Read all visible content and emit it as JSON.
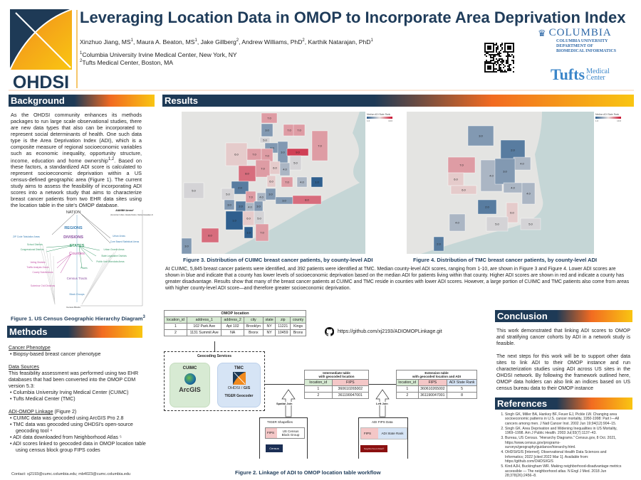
{
  "header": {
    "logo_text": "OHDSI",
    "title": "Leveraging Location Data in OMOP to Incorporate Area Deprivation Index",
    "authors": [
      {
        "name": "Xinzhuo Jiang, MS",
        "aff": "1"
      },
      {
        "name": "Maura A. Beaton, MS",
        "aff": "1"
      },
      {
        "name": "Jake Gillberg",
        "aff": "2"
      },
      {
        "name": "Andrew Williams, PhD",
        "aff": "2"
      },
      {
        "name": "Karthik Natarajan, PhD",
        "aff": "1"
      }
    ],
    "affiliations": [
      {
        "num": "1",
        "text": "Columbia University Irvine Medical Center, New York, NY"
      },
      {
        "num": "2",
        "text": "Tufts Medical Center, Boston, MA"
      }
    ],
    "columbia_logo": "COLUMBIA",
    "columbia_dept": [
      "Columbia University",
      "Department of",
      "Biomedical Informatics"
    ],
    "tufts_logo": "Tufts",
    "tufts_sub": [
      "Medical",
      "Center"
    ]
  },
  "background": {
    "heading": "Background",
    "text": "As the OHDSI community enhances its methods packages to run large scale observational studies, there are new data types that also can be incorporated to represent social determinants of health. One such data type is the Area Deprivation Index (ADI), which is a composite measure of regional socioeconomic variables such as economic inequality, opportunity structure, income, education and home ownership",
    "text_sup": "1,2",
    "text2": ". Based on these factors, a standardized ADI score is calculated to represent socioeconomic deprivation within a US census-defined geographic area (Figure 1). The current study aims to assess the feasibility of incorporating ADI scores into a network study that aims to characterize breast cancer patients from two EHR data sites using the location table in the site's OMOP database.",
    "figure1": {
      "nation": "NATION",
      "regions": "REGIONS",
      "divisions": "DIVISIONS",
      "states": "STATES",
      "counties": "Counties",
      "tracts": "Census Tracts",
      "block_groups": "Block Groups",
      "blocks": "Census Blocks",
      "aiannh": "AIANNH Areas*",
      "aiannh_note": "(American Indian, Alaska Native, Native Hawaiian Areas)",
      "left": [
        "ZIP Code Tabulation Areas",
        "School Districts",
        "Congressional Districts"
      ],
      "county_subs": [
        "Voting Districts",
        "Traffic Analysis Zones",
        "County Subdivisions",
        "Subminor Civil Divisions"
      ],
      "right": [
        "Urban Areas",
        "Core Based Statistical Areas",
        "Urban Growth Areas",
        "State Legislative Districts",
        "Public Use Microdata Areas",
        "Places"
      ],
      "caption": "Figure 1. US Census Geographic Hierarchy Diagram",
      "caption_sup": "3"
    }
  },
  "methods": {
    "heading": "Methods",
    "phenotype_title": "Cancer Phenotype",
    "phenotype_items": [
      "Biopsy-based breast cancer phenotype"
    ],
    "sources_title": "Data Sources",
    "sources_text": "This feasibility assessment was performed using two EHR databases that had been converted into the OMOP CDM version 5.3:",
    "sources_items": [
      "Columbia University Irving Medical Center (CUIMC)",
      "Tufts Medical Center (TMC)"
    ],
    "linkage_title": "ADI-OMOP Linkage",
    "linkage_ref": " (Figure 2)",
    "linkage_items": [
      "CUIMC data was geocoded using ArcGIS Pro 2.8",
      "TMC data was geocoded using OHDSI's open-source geocoding tool ⁴",
      "ADI data downloaded from Neighborhood Atlas ⁵",
      "ADI scores linked to geocoded data in OMOP location table using census block group FIPS codes"
    ],
    "contact": "Contact: xj2193@cumc.columbia.edu; mb4023@cumc.columbia.edu"
  },
  "results": {
    "heading": "Results",
    "legend_title": "Median ADI State Rank",
    "legend_min": "1.0",
    "legend_max": "10.0",
    "colors": {
      "low": "#2f5f8e",
      "mid": "#e9e2df",
      "high": "#c8102e"
    },
    "fig3_values": [
      7,
      3,
      5,
      7,
      7,
      7,
      3,
      6,
      7,
      7,
      3,
      9,
      8,
      7,
      6,
      4,
      5,
      5,
      6,
      7,
      2,
      4,
      1,
      7,
      5,
      4,
      3,
      3,
      8,
      3,
      2,
      4,
      3,
      1,
      6,
      5,
      8,
      1,
      7,
      3
    ],
    "fig3_caption": "Figure 3. Distribution of CUIMC breast cancer patients, by county-level ADI",
    "fig4_values": [
      3,
      2,
      4,
      7,
      6,
      6,
      4,
      3,
      4,
      4,
      2,
      6,
      5,
      5,
      4,
      2
    ],
    "fig4_caption": "Figure 4. Distribution of TMC breast cancer patients, by county-level ADI",
    "text": "At CUIMC, 5,845 breast cancer patients were identified, and 392 patients were identified at TMC. Median county-level ADI scores, ranging from 1-10, are shown in Figure 3 and Figure 4. Lower ADI scores are shown in blue and indicate that a county has lower levels of socioeconomic deprivation based on the median ADI for patients living within that county. Higher ADI scores are shown in red and indicate a county has greater disadvantage.  Results show that many of the breast cancer patients at CUIMC and TMC reside in counties with lower ADI scores. However, a large portion of CUIMC and TMC patients also come from areas with higher county-level ADI score—and therefore greater socioeconomic deprivation.",
    "github": "https://github.com/xj2193/ADIOMOPLinkage.git"
  },
  "figure2": {
    "omop_title": "OMOP location",
    "omop_cols": [
      "location_id",
      "address_1",
      "address_2",
      "city",
      "state",
      "zip",
      "county"
    ],
    "omop_rows": [
      [
        "1",
        "102 Park Ave",
        "Apt 102",
        "Brooklyn",
        "NY",
        "11221",
        "Kings"
      ],
      [
        "2",
        "1131 Summit Ave",
        "NA",
        "Bronx",
        "NY",
        "10459",
        "Bronx"
      ]
    ],
    "geocoding_title": "Geocoding Services",
    "cuimc": "CUIMC",
    "arcgis": "ArcGIS",
    "tmc": "TMC",
    "ohdsi_gis": "OHDSI / ",
    "gis": "GIS",
    "tiger_geocoder": "TIGER Geocoder",
    "inter_title": [
      "Intermediate table",
      "with geocoded location"
    ],
    "inter_cols": [
      "location_id",
      "FIPS"
    ],
    "inter_rows": [
      [
        "1",
        "360610265002"
      ],
      [
        "2",
        "361190047001"
      ]
    ],
    "ext_title": [
      "Extension table",
      "with geocoded location and ADI"
    ],
    "ext_cols": [
      "location_id",
      "FIPS",
      "ADI State Rank"
    ],
    "ext_rows": [
      [
        "1",
        "360610265002",
        "5"
      ],
      [
        "2",
        "361190047001",
        "8"
      ]
    ],
    "spatial_join": "Spatial Join",
    "left_join": "Left Join",
    "tiger_title": "TIGER Shapefiles",
    "tiger_fips": "FIPS",
    "tiger_block": "US Census Block Group",
    "census_logo": "Census",
    "adi_title": "ADI FIPS Data",
    "adi_fips": "FIPS",
    "adi_rank": "ADI State Rank",
    "atlas_logo": "Neighborhood Atlas®",
    "caption": "Figure 2. Linkage of ADI to OMOP location table workflow"
  },
  "conclusion": {
    "heading": "Conclusion",
    "p1": "This work demonstrated that linking ADI scores to OMOP and stratifying cancer cohorts by ADI in a network study is feasible.",
    "p2": "The next steps for this work will be to support other data sites to link ADI to their OMOP instance and run characterization studies using ADI across US sites in the OHDSI network. By following the framework outlined here, OMOP data holders can also link an indices based on US census bureau data to their OMOP instance"
  },
  "references": {
    "heading": "References",
    "items": [
      "Singh GK, Miller BA, Hankey BF, Feuer EJ, Pickle LW. Changing area socioeconomic patterns in U.S. cancer mortality, 1950-1998: Part I—All cancers among men. J Natl Cancer Inst. 2002 Jun 19;94(12):904–15.",
      "Singh GK. Area Deprivation and Widening Inequalities in US Mortality, 1969–1998. Am J Public Health. 2003 Jul;93(7):1137–43.",
      "Bureau, US Census. \"Hierarchy Diagrams.\" Census.gov, 8 Oct. 2021, https://www.census.gov/programs-surveys/geography/guidance/hierarchy.html.",
      "OHDSI/GIS [Internet]. Observational Health Data Sciences and Informatics; 2022 [cited 2022 Mar 1]. Available from: https://github.com/OHDSI/GIS",
      "Kind AJH, Buckingham WR. Making neighborhood-disadvantage metrics accessible — The neighborhood atlas. N Engl J Med. 2018 Jun 28;378(26):2456–8."
    ]
  }
}
